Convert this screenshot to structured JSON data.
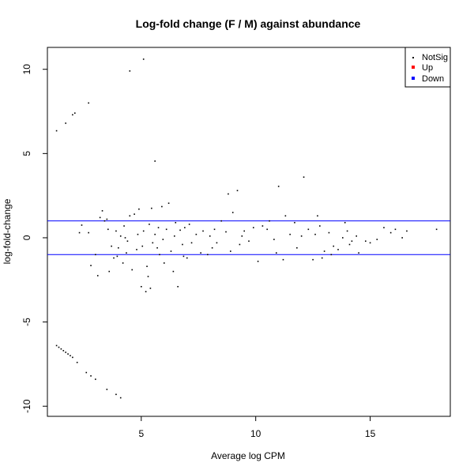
{
  "chart_data": {
    "type": "scatter",
    "title": "Log-fold change (F / M) against abundance",
    "xlabel": "Average log CPM",
    "ylabel": "log-fold-change",
    "xlim": [
      0.9,
      18.5
    ],
    "ylim": [
      -10.6,
      11.3
    ],
    "x_ticks": [
      5,
      10,
      15
    ],
    "y_ticks": [
      -10,
      -5,
      0,
      5,
      10
    ],
    "x_tick_labels": [
      "5",
      "10",
      "15"
    ],
    "y_tick_labels": [
      "-10",
      "-5",
      "0",
      "5",
      "10"
    ],
    "grid": false,
    "hlines": [
      {
        "y": 1,
        "color": "#0000ff"
      },
      {
        "y": -1,
        "color": "#0000ff"
      }
    ],
    "legend": {
      "placement": "top-right",
      "entries": [
        {
          "label": "NotSig",
          "color": "#000000"
        },
        {
          "label": "Up",
          "color": "#ff0000"
        },
        {
          "label": "Down",
          "color": "#0000ff"
        }
      ]
    },
    "series": [
      {
        "name": "NotSig",
        "color": "#000000",
        "points": [
          [
            1.3,
            6.35
          ],
          [
            1.7,
            6.8
          ],
          [
            2.0,
            7.3
          ],
          [
            2.1,
            7.4
          ],
          [
            2.7,
            8.0
          ],
          [
            4.5,
            9.9
          ],
          [
            5.1,
            10.6
          ],
          [
            5.6,
            4.55
          ],
          [
            1.3,
            -6.4
          ],
          [
            1.4,
            -6.5
          ],
          [
            1.5,
            -6.6
          ],
          [
            1.6,
            -6.7
          ],
          [
            1.7,
            -6.8
          ],
          [
            1.8,
            -6.9
          ],
          [
            1.9,
            -7.0
          ],
          [
            2.0,
            -7.1
          ],
          [
            2.2,
            -7.4
          ],
          [
            2.6,
            -8.0
          ],
          [
            2.8,
            -8.2
          ],
          [
            3.0,
            -8.4
          ],
          [
            3.5,
            -9.0
          ],
          [
            3.9,
            -9.3
          ],
          [
            4.1,
            -9.5
          ],
          [
            2.3,
            0.3
          ],
          [
            2.4,
            0.75
          ],
          [
            2.7,
            0.3
          ],
          [
            2.8,
            -1.65
          ],
          [
            3.0,
            -1.0
          ],
          [
            3.1,
            -2.25
          ],
          [
            3.2,
            1.2
          ],
          [
            3.3,
            1.6
          ],
          [
            3.4,
            1.0
          ],
          [
            3.5,
            1.1
          ],
          [
            3.6,
            -2.0
          ],
          [
            3.7,
            -0.5
          ],
          [
            3.8,
            -1.2
          ],
          [
            3.9,
            0.4
          ],
          [
            4.0,
            -0.6
          ],
          [
            4.1,
            0.1
          ],
          [
            4.2,
            -1.5
          ],
          [
            4.3,
            0.0
          ],
          [
            4.4,
            -0.2
          ],
          [
            4.5,
            1.3
          ],
          [
            4.6,
            -1.9
          ],
          [
            4.7,
            1.4
          ],
          [
            4.8,
            -0.7
          ],
          [
            4.9,
            1.7
          ],
          [
            5.0,
            -2.9
          ],
          [
            5.05,
            -0.5
          ],
          [
            5.1,
            0.4
          ],
          [
            5.2,
            -3.2
          ],
          [
            5.3,
            -2.3
          ],
          [
            5.35,
            0.8
          ],
          [
            5.4,
            -3.0
          ],
          [
            5.45,
            1.75
          ],
          [
            5.5,
            -0.3
          ],
          [
            5.6,
            0.2
          ],
          [
            5.7,
            -0.6
          ],
          [
            5.8,
            -1.0
          ],
          [
            5.9,
            1.85
          ],
          [
            6.0,
            -1.5
          ],
          [
            6.1,
            0.5
          ],
          [
            6.2,
            2.05
          ],
          [
            6.3,
            -0.8
          ],
          [
            6.4,
            -2.0
          ],
          [
            6.5,
            0.9
          ],
          [
            6.6,
            -2.9
          ],
          [
            6.7,
            0.45
          ],
          [
            6.8,
            -0.4
          ],
          [
            6.9,
            0.6
          ],
          [
            7.0,
            -1.2
          ],
          [
            7.2,
            -0.3
          ],
          [
            7.4,
            0.2
          ],
          [
            7.6,
            -0.9
          ],
          [
            7.9,
            -1.0
          ],
          [
            8.0,
            0.1
          ],
          [
            8.2,
            0.5
          ],
          [
            8.3,
            -0.3
          ],
          [
            8.5,
            1.0
          ],
          [
            8.7,
            0.35
          ],
          [
            8.8,
            2.6
          ],
          [
            9.0,
            1.5
          ],
          [
            9.2,
            2.8
          ],
          [
            9.3,
            -0.4
          ],
          [
            9.5,
            0.4
          ],
          [
            9.7,
            -0.2
          ],
          [
            10.1,
            -1.4
          ],
          [
            10.3,
            0.7
          ],
          [
            10.5,
            0.5
          ],
          [
            10.8,
            -0.1
          ],
          [
            11.0,
            3.05
          ],
          [
            11.2,
            -1.3
          ],
          [
            11.5,
            0.2
          ],
          [
            11.8,
            -0.6
          ],
          [
            12.1,
            3.6
          ],
          [
            12.3,
            0.5
          ],
          [
            12.5,
            -1.3
          ],
          [
            12.7,
            1.3
          ],
          [
            12.8,
            0.7
          ],
          [
            13.0,
            -0.8
          ],
          [
            13.2,
            0.3
          ],
          [
            13.4,
            -0.5
          ],
          [
            13.6,
            -0.7
          ],
          [
            13.8,
            0.0
          ],
          [
            14.0,
            0.4
          ],
          [
            14.2,
            -0.2
          ],
          [
            14.5,
            -0.9
          ],
          [
            14.8,
            -0.2
          ],
          [
            15.3,
            -0.1
          ],
          [
            15.6,
            0.6
          ],
          [
            16.1,
            0.5
          ],
          [
            16.4,
            0.0
          ],
          [
            17.9,
            0.5
          ],
          [
            13.3,
            -1.0
          ],
          [
            15.0,
            -0.3
          ],
          [
            12.0,
            0.1
          ],
          [
            10.6,
            1.0
          ],
          [
            9.9,
            0.6
          ],
          [
            8.1,
            -0.6
          ],
          [
            7.7,
            0.4
          ],
          [
            6.85,
            -1.1
          ],
          [
            5.95,
            -0.1
          ],
          [
            5.25,
            -1.7
          ],
          [
            4.85,
            0.2
          ],
          [
            4.35,
            -0.9
          ],
          [
            3.55,
            0.5
          ],
          [
            11.7,
            0.9
          ],
          [
            12.9,
            -1.2
          ],
          [
            13.9,
            0.9
          ],
          [
            14.1,
            -0.4
          ],
          [
            9.4,
            0.1
          ],
          [
            8.9,
            -0.8
          ],
          [
            7.1,
            0.8
          ],
          [
            6.45,
            0.1
          ],
          [
            5.75,
            0.6
          ],
          [
            4.25,
            0.7
          ],
          [
            3.95,
            -1.1
          ],
          [
            11.3,
            1.3
          ],
          [
            10.9,
            -0.9
          ],
          [
            12.6,
            0.2
          ],
          [
            14.4,
            0.1
          ],
          [
            15.9,
            0.3
          ],
          [
            16.6,
            0.4
          ]
        ]
      },
      {
        "name": "Up",
        "color": "#ff0000",
        "points": []
      },
      {
        "name": "Down",
        "color": "#0000ff",
        "points": []
      }
    ]
  }
}
